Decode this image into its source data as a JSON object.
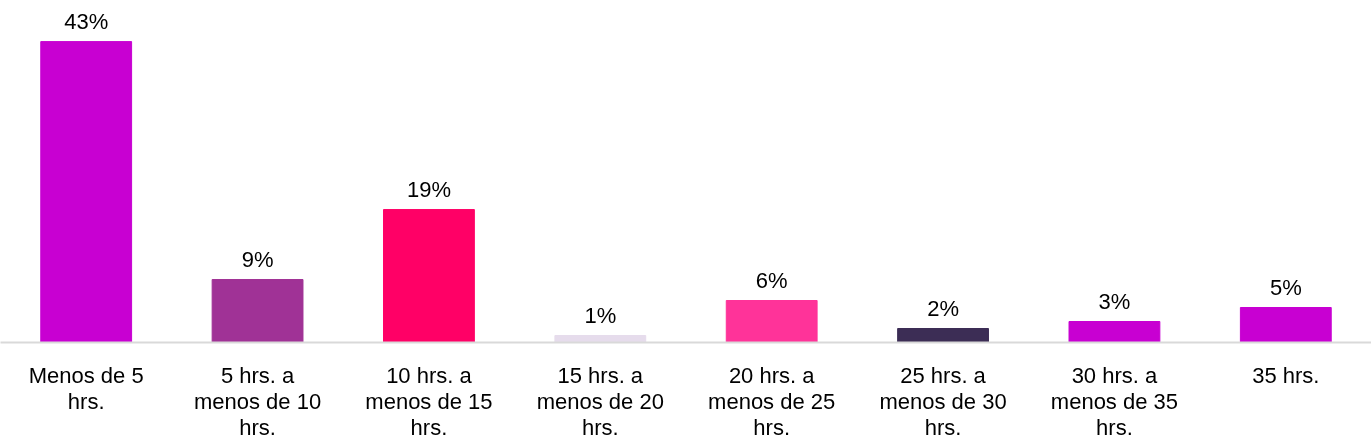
{
  "chart_data": {
    "type": "bar",
    "categories": [
      "Menos de 5 hrs.",
      "5 hrs. a menos de 10 hrs.",
      "10 hrs. a menos de 15 hrs.",
      "15 hrs. a menos de 20 hrs.",
      "20 hrs. a menos de 25 hrs.",
      "25 hrs. a menos de 30 hrs.",
      "30 hrs. a menos de 35 hrs.",
      "35 hrs."
    ],
    "values": [
      43,
      9,
      19,
      1,
      6,
      2,
      3,
      5
    ],
    "colors": [
      "#c800d2",
      "#a03296",
      "#ff0066",
      "#e6dcec",
      "#ff3399",
      "#3c2d55",
      "#c800d2",
      "#c800d2"
    ],
    "value_labels": [
      "43%",
      "9%",
      "19%",
      "1%",
      "6%",
      "2%",
      "3%",
      "5%"
    ],
    "grid": false,
    "tick_labels": "x"
  }
}
